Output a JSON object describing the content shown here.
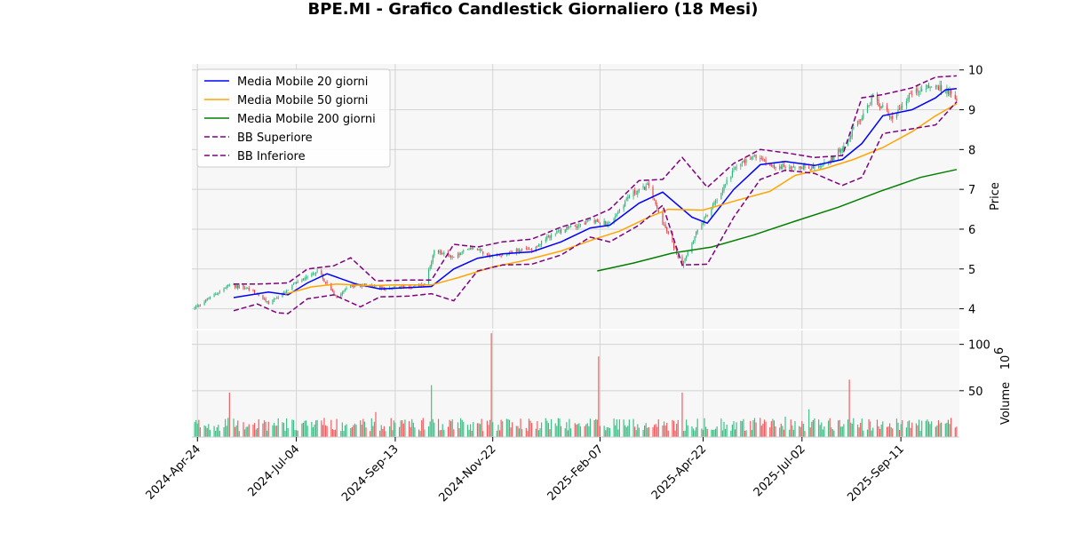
{
  "chart_data": {
    "type": "candlestick",
    "title": "BPE.MI - Grafico Candlestick Giornaliero (18 Mesi)",
    "price_panel": {
      "ylabel": "Price",
      "ylim": [
        3.5,
        10.15
      ],
      "yticks": [
        4,
        5,
        6,
        7,
        8,
        9,
        10
      ],
      "grid": true
    },
    "volume_panel": {
      "ylabel": "Volume",
      "ylabel_exponent": "10",
      "ylabel_exponent_power": "6",
      "ylim": [
        0,
        115
      ],
      "yticks": [
        50,
        100
      ],
      "grid": true
    },
    "x_range": [
      "2024-04-20",
      "2025-10-23"
    ],
    "x_ticks": [
      "2024-Apr-24",
      "2024-Jul-04",
      "2024-Sep-13",
      "2024-Nov-22",
      "2025-Feb-07",
      "2025-Apr-22",
      "2025-Jul-02",
      "2025-Sep-11"
    ],
    "x_tick_dates": [
      "2024-04-24",
      "2024-07-04",
      "2024-09-13",
      "2024-11-22",
      "2025-02-07",
      "2025-04-22",
      "2025-07-02",
      "2025-09-11"
    ],
    "legend_position": "top-left",
    "colors": {
      "up": "#2eb67d",
      "down": "#e8454a",
      "volume_up": "#3cbf86",
      "volume_down": "#f25c5f"
    },
    "close_path": [
      [
        "2024-04-22",
        4.02
      ],
      [
        "2024-05-03",
        4.28
      ],
      [
        "2024-05-17",
        4.6
      ],
      [
        "2024-05-31",
        4.5
      ],
      [
        "2024-06-14",
        4.15
      ],
      [
        "2024-06-26",
        4.4
      ],
      [
        "2024-07-05",
        4.7
      ],
      [
        "2024-07-19",
        4.95
      ],
      [
        "2024-08-02",
        4.3
      ],
      [
        "2024-08-09",
        4.55
      ],
      [
        "2024-08-23",
        4.6
      ],
      [
        "2024-09-06",
        4.5
      ],
      [
        "2024-09-20",
        4.55
      ],
      [
        "2024-10-04",
        4.6
      ],
      [
        "2024-10-11",
        5.45
      ],
      [
        "2024-10-25",
        5.3
      ],
      [
        "2024-11-08",
        5.55
      ],
      [
        "2024-11-22",
        5.3
      ],
      [
        "2024-12-06",
        5.45
      ],
      [
        "2024-12-20",
        5.5
      ],
      [
        "2025-01-03",
        5.85
      ],
      [
        "2025-01-17",
        6.05
      ],
      [
        "2025-01-31",
        6.2
      ],
      [
        "2025-02-14",
        6.15
      ],
      [
        "2025-02-28",
        6.85
      ],
      [
        "2025-03-14",
        7.1
      ],
      [
        "2025-03-21",
        6.4
      ],
      [
        "2025-04-07",
        5.1
      ],
      [
        "2025-04-17",
        5.9
      ],
      [
        "2025-04-29",
        6.6
      ],
      [
        "2025-05-14",
        7.5
      ],
      [
        "2025-05-28",
        7.85
      ],
      [
        "2025-06-13",
        7.55
      ],
      [
        "2025-06-27",
        7.6
      ],
      [
        "2025-07-11",
        7.5
      ],
      [
        "2025-07-25",
        7.8
      ],
      [
        "2025-08-08",
        8.5
      ],
      [
        "2025-08-22",
        9.3
      ],
      [
        "2025-09-05",
        8.8
      ],
      [
        "2025-09-19",
        9.45
      ],
      [
        "2025-10-03",
        9.6
      ],
      [
        "2025-10-17",
        9.45
      ],
      [
        "2025-10-21",
        9.3
      ]
    ],
    "series": [
      {
        "name": "Media Mobile 20 giorni",
        "color": "#0000ff",
        "dash": "solid",
        "points": [
          [
            "2024-05-20",
            4.28
          ],
          [
            "2024-06-14",
            4.42
          ],
          [
            "2024-06-28",
            4.35
          ],
          [
            "2024-07-12",
            4.65
          ],
          [
            "2024-07-26",
            4.88
          ],
          [
            "2024-08-16",
            4.62
          ],
          [
            "2024-09-02",
            4.5
          ],
          [
            "2024-09-23",
            4.53
          ],
          [
            "2024-10-09",
            4.56
          ],
          [
            "2024-10-25",
            5.0
          ],
          [
            "2024-11-11",
            5.27
          ],
          [
            "2024-11-29",
            5.38
          ],
          [
            "2024-12-20",
            5.43
          ],
          [
            "2025-01-10",
            5.68
          ],
          [
            "2025-01-31",
            6.03
          ],
          [
            "2025-02-14",
            6.1
          ],
          [
            "2025-03-07",
            6.65
          ],
          [
            "2025-03-24",
            6.93
          ],
          [
            "2025-04-14",
            6.3
          ],
          [
            "2025-04-25",
            6.15
          ],
          [
            "2025-05-14",
            7.0
          ],
          [
            "2025-06-02",
            7.62
          ],
          [
            "2025-06-20",
            7.7
          ],
          [
            "2025-07-11",
            7.6
          ],
          [
            "2025-07-31",
            7.75
          ],
          [
            "2025-08-14",
            8.15
          ],
          [
            "2025-08-29",
            8.85
          ],
          [
            "2025-09-19",
            9.0
          ],
          [
            "2025-10-06",
            9.3
          ],
          [
            "2025-10-13",
            9.5
          ],
          [
            "2025-10-21",
            9.53
          ]
        ]
      },
      {
        "name": "Media Mobile 50 giorni",
        "color": "#ffa500",
        "dash": "solid",
        "points": [
          [
            "2024-06-26",
            4.37
          ],
          [
            "2024-07-15",
            4.55
          ],
          [
            "2024-08-02",
            4.62
          ],
          [
            "2024-08-26",
            4.58
          ],
          [
            "2024-09-13",
            4.6
          ],
          [
            "2024-10-09",
            4.6
          ],
          [
            "2024-10-28",
            4.78
          ],
          [
            "2024-11-22",
            5.05
          ],
          [
            "2024-12-13",
            5.2
          ],
          [
            "2025-01-10",
            5.45
          ],
          [
            "2025-02-03",
            5.75
          ],
          [
            "2025-02-21",
            5.95
          ],
          [
            "2025-03-14",
            6.3
          ],
          [
            "2025-03-28",
            6.5
          ],
          [
            "2025-04-22",
            6.48
          ],
          [
            "2025-05-16",
            6.72
          ],
          [
            "2025-06-09",
            6.95
          ],
          [
            "2025-06-27",
            7.35
          ],
          [
            "2025-07-18",
            7.52
          ],
          [
            "2025-08-08",
            7.75
          ],
          [
            "2025-08-29",
            8.05
          ],
          [
            "2025-09-19",
            8.45
          ],
          [
            "2025-10-06",
            8.85
          ],
          [
            "2025-10-21",
            9.15
          ]
        ]
      },
      {
        "name": "Media Mobile 200 giorni",
        "color": "#008000",
        "dash": "solid",
        "points": [
          [
            "2025-02-05",
            4.95
          ],
          [
            "2025-03-03",
            5.15
          ],
          [
            "2025-03-31",
            5.4
          ],
          [
            "2025-04-28",
            5.55
          ],
          [
            "2025-05-28",
            5.85
          ],
          [
            "2025-06-27",
            6.2
          ],
          [
            "2025-07-28",
            6.55
          ],
          [
            "2025-08-27",
            6.95
          ],
          [
            "2025-09-25",
            7.3
          ],
          [
            "2025-10-21",
            7.5
          ]
        ]
      },
      {
        "name": "BB Superiore",
        "color": "#800080",
        "dash": "dashed",
        "points": [
          [
            "2024-05-20",
            4.62
          ],
          [
            "2024-06-06",
            4.62
          ],
          [
            "2024-06-28",
            4.65
          ],
          [
            "2024-07-12",
            5.0
          ],
          [
            "2024-07-31",
            5.08
          ],
          [
            "2024-08-12",
            5.28
          ],
          [
            "2024-08-30",
            4.7
          ],
          [
            "2024-09-20",
            4.72
          ],
          [
            "2024-10-09",
            4.72
          ],
          [
            "2024-10-25",
            5.62
          ],
          [
            "2024-11-11",
            5.55
          ],
          [
            "2024-11-29",
            5.68
          ],
          [
            "2024-12-20",
            5.75
          ],
          [
            "2025-01-10",
            6.05
          ],
          [
            "2025-01-31",
            6.28
          ],
          [
            "2025-02-14",
            6.5
          ],
          [
            "2025-03-07",
            7.22
          ],
          [
            "2025-03-24",
            7.25
          ],
          [
            "2025-04-07",
            7.8
          ],
          [
            "2025-04-25",
            7.05
          ],
          [
            "2025-05-14",
            7.65
          ],
          [
            "2025-06-02",
            8.0
          ],
          [
            "2025-06-20",
            7.92
          ],
          [
            "2025-07-11",
            7.8
          ],
          [
            "2025-07-31",
            7.85
          ],
          [
            "2025-08-14",
            9.3
          ],
          [
            "2025-08-29",
            9.38
          ],
          [
            "2025-09-19",
            9.55
          ],
          [
            "2025-10-06",
            9.82
          ],
          [
            "2025-10-21",
            9.85
          ]
        ]
      },
      {
        "name": "BB Inferiore",
        "color": "#800080",
        "dash": "dashed",
        "points": [
          [
            "2024-05-20",
            3.95
          ],
          [
            "2024-06-06",
            4.12
          ],
          [
            "2024-06-20",
            3.9
          ],
          [
            "2024-06-28",
            3.88
          ],
          [
            "2024-07-12",
            4.25
          ],
          [
            "2024-07-31",
            4.35
          ],
          [
            "2024-08-19",
            4.05
          ],
          [
            "2024-09-02",
            4.3
          ],
          [
            "2024-09-23",
            4.32
          ],
          [
            "2024-10-09",
            4.38
          ],
          [
            "2024-10-25",
            4.2
          ],
          [
            "2024-11-11",
            4.95
          ],
          [
            "2024-11-29",
            5.1
          ],
          [
            "2024-12-20",
            5.12
          ],
          [
            "2025-01-10",
            5.35
          ],
          [
            "2025-01-31",
            5.8
          ],
          [
            "2025-02-14",
            5.68
          ],
          [
            "2025-03-07",
            6.1
          ],
          [
            "2025-03-24",
            6.6
          ],
          [
            "2025-04-07",
            5.1
          ],
          [
            "2025-04-25",
            5.12
          ],
          [
            "2025-05-14",
            6.3
          ],
          [
            "2025-06-02",
            7.25
          ],
          [
            "2025-06-20",
            7.48
          ],
          [
            "2025-07-11",
            7.4
          ],
          [
            "2025-07-31",
            7.1
          ],
          [
            "2025-08-14",
            7.3
          ],
          [
            "2025-08-29",
            8.4
          ],
          [
            "2025-09-19",
            8.52
          ],
          [
            "2025-10-06",
            8.62
          ],
          [
            "2025-10-21",
            9.2
          ]
        ]
      }
    ],
    "volume_spikes": [
      [
        "2024-05-17",
        48,
        "down"
      ],
      [
        "2024-10-09",
        56,
        "up"
      ],
      [
        "2024-11-21",
        112,
        "down"
      ],
      [
        "2025-02-06",
        87,
        "down"
      ],
      [
        "2025-04-07",
        48,
        "down"
      ],
      [
        "2025-08-05",
        62,
        "down"
      ],
      [
        "2024-08-30",
        27,
        "down"
      ],
      [
        "2025-06-20",
        22,
        "up"
      ],
      [
        "2025-07-07",
        30,
        "up"
      ]
    ],
    "volume_baseline": 16
  }
}
